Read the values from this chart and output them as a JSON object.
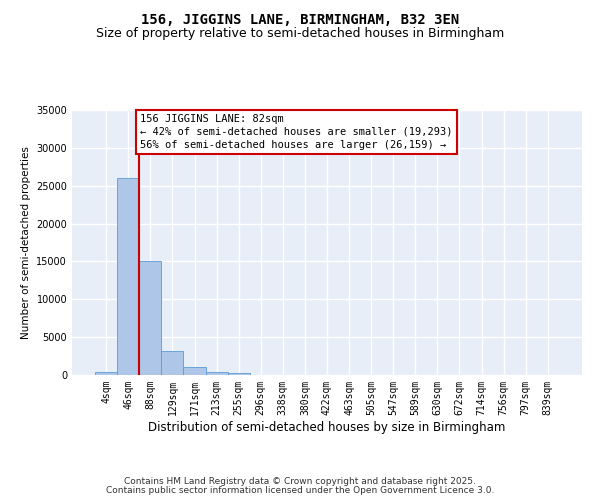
{
  "title_line1": "156, JIGGINS LANE, BIRMINGHAM, B32 3EN",
  "title_line2": "Size of property relative to semi-detached houses in Birmingham",
  "xlabel": "Distribution of semi-detached houses by size in Birmingham",
  "ylabel": "Number of semi-detached properties",
  "categories": [
    "4sqm",
    "46sqm",
    "88sqm",
    "129sqm",
    "171sqm",
    "213sqm",
    "255sqm",
    "296sqm",
    "338sqm",
    "380sqm",
    "422sqm",
    "463sqm",
    "505sqm",
    "547sqm",
    "589sqm",
    "630sqm",
    "672sqm",
    "714sqm",
    "756sqm",
    "797sqm",
    "839sqm"
  ],
  "values": [
    380,
    26000,
    15100,
    3200,
    1100,
    450,
    200,
    30,
    0,
    0,
    0,
    0,
    0,
    0,
    0,
    0,
    0,
    0,
    0,
    0,
    0
  ],
  "bar_color": "#aec6e8",
  "bar_edge_color": "#5b9bd5",
  "vline_color": "#cc0000",
  "annotation_text": "156 JIGGINS LANE: 82sqm\n← 42% of semi-detached houses are smaller (19,293)\n56% of semi-detached houses are larger (26,159) →",
  "annotation_box_color": "#ffffff",
  "annotation_box_edge": "#cc0000",
  "ylim": [
    0,
    35000
  ],
  "yticks": [
    0,
    5000,
    10000,
    15000,
    20000,
    25000,
    30000,
    35000
  ],
  "background_color": "#e8eef8",
  "grid_color": "#ffffff",
  "footer_line1": "Contains HM Land Registry data © Crown copyright and database right 2025.",
  "footer_line2": "Contains public sector information licensed under the Open Government Licence 3.0.",
  "title_fontsize": 10,
  "subtitle_fontsize": 9,
  "xlabel_fontsize": 8.5,
  "ylabel_fontsize": 7.5,
  "tick_fontsize": 7,
  "annotation_fontsize": 7.5,
  "footer_fontsize": 6.5
}
